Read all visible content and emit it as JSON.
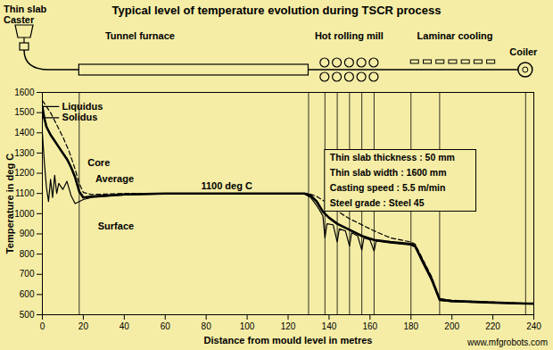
{
  "chart_data": {
    "type": "line",
    "title": "Typical level of temperature evolution during TSCR process",
    "xlabel": "Distance from mould level in metres",
    "ylabel": "Temperature in deg C",
    "xlim": [
      0,
      240
    ],
    "ylim": [
      500,
      1600
    ],
    "xticks": [
      0,
      20,
      40,
      60,
      80,
      100,
      120,
      140,
      160,
      180,
      200,
      220,
      240
    ],
    "yticks": [
      500,
      600,
      700,
      800,
      900,
      1000,
      1100,
      1200,
      1300,
      1400,
      1500,
      1600
    ],
    "grid": false,
    "color": "#000000",
    "series": [
      {
        "name": "Liquidus",
        "color": "#000000",
        "line_style": "solid",
        "x": [
          0,
          8
        ],
        "values": [
          1530,
          1530
        ]
      },
      {
        "name": "Solidus",
        "color": "#000000",
        "line_style": "solid",
        "x": [
          0,
          8
        ],
        "values": [
          1475,
          1475
        ]
      },
      {
        "name": "Core",
        "color": "#000000",
        "line_style": "dashed",
        "x": [
          0,
          2,
          4,
          6,
          8,
          10,
          13,
          16,
          18,
          20,
          24,
          40,
          60,
          128,
          130,
          134,
          138,
          142,
          146,
          150,
          156,
          162,
          170,
          180,
          182,
          186,
          190,
          194,
          200,
          240
        ],
        "values": [
          1560,
          1530,
          1500,
          1460,
          1420,
          1380,
          1310,
          1220,
          1150,
          1105,
          1095,
          1100,
          1100,
          1100,
          1100,
          1085,
          1060,
          1030,
          1000,
          975,
          945,
          915,
          880,
          860,
          850,
          770,
          690,
          580,
          570,
          555
        ]
      },
      {
        "name": "Average",
        "color": "#000000",
        "line_style": "thick",
        "x": [
          0,
          1,
          2,
          4,
          6,
          8,
          10,
          12,
          14,
          16,
          18,
          20,
          24,
          40,
          60,
          128,
          131,
          134,
          137,
          140,
          144,
          150,
          156,
          162,
          170,
          180,
          182,
          186,
          190,
          194,
          200,
          220,
          236,
          240
        ],
        "values": [
          1530,
          1470,
          1430,
          1390,
          1360,
          1330,
          1300,
          1270,
          1230,
          1180,
          1110,
          1080,
          1085,
          1095,
          1100,
          1100,
          1090,
          1060,
          1010,
          980,
          950,
          920,
          890,
          870,
          860,
          850,
          840,
          760,
          680,
          575,
          568,
          560,
          555,
          555
        ]
      },
      {
        "name": "Surface",
        "color": "#000000",
        "line_style": "solid",
        "x": [
          0,
          1,
          2,
          3,
          4,
          5,
          6,
          7,
          8,
          10,
          12,
          14,
          16,
          18,
          20,
          24,
          40,
          60,
          128,
          131,
          134,
          137,
          138,
          139,
          142,
          144,
          145,
          148,
          150,
          151,
          154,
          156,
          157,
          160,
          162,
          163,
          170,
          180,
          182,
          186,
          190,
          194,
          200,
          240
        ],
        "values": [
          1400,
          1250,
          1130,
          1060,
          1170,
          1080,
          1190,
          1100,
          1150,
          1120,
          1160,
          1090,
          1050,
          1060,
          1070,
          1080,
          1092,
          1098,
          1098,
          1080,
          1040,
          990,
          880,
          950,
          945,
          860,
          925,
          915,
          840,
          905,
          890,
          820,
          880,
          870,
          815,
          865,
          855,
          845,
          835,
          750,
          670,
          570,
          565,
          552
        ]
      }
    ],
    "annotations": [
      "1100 deg C"
    ],
    "info_box": [
      "Thin slab thickness : 50 mm",
      "Thin slab width : 1600 mm",
      "Casting speed : 5.5 m/min",
      "Steel grade : Steel 45"
    ],
    "process_stages": {
      "caster": [
        "Thin slab",
        "Caster"
      ],
      "furnace": "Tunnel furnace",
      "mill": "Hot rolling mill",
      "cooling": "Laminar cooling",
      "coiler": "Coiler"
    },
    "equipment_x": [
      18,
      130,
      138,
      144,
      150,
      156,
      162,
      180,
      194,
      236
    ],
    "watermark": "www.mfgrobots.com"
  }
}
